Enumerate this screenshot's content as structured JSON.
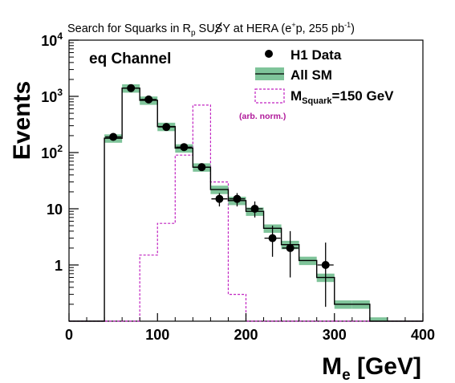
{
  "chart_data": {
    "type": "histogram",
    "title": "Search for Squarks in R̸p SUSY at HERA (e⁺p, 255 pb⁻¹)",
    "title_parts": {
      "prefix": "Search for Squarks in ",
      "rp_letter": "R",
      "rp_sub": "p",
      "middle": " SUSY at HERA (e",
      "sup_plus": "+",
      "mid2": "p, 255 pb",
      "sup_inv": "-1",
      "suffix": ")"
    },
    "channel_label": "eq Channel",
    "xlabel": "M",
    "xlabel_sub": "e",
    "xlabel_suffix": " [GeV]",
    "ylabel": "Events",
    "xlim": [
      0,
      400
    ],
    "ylim": [
      0.1,
      10000
    ],
    "y_scale": "log",
    "x_ticks": [
      0,
      100,
      200,
      300,
      400
    ],
    "y_ticks": [
      {
        "value": 1,
        "label": "1"
      },
      {
        "value": 10,
        "label": "10"
      },
      {
        "value": 100,
        "label_base": "10",
        "label_exp": "2"
      },
      {
        "value": 1000,
        "label_base": "10",
        "label_exp": "3"
      },
      {
        "value": 10000,
        "label_base": "10",
        "label_exp": "4"
      }
    ],
    "legend": {
      "position": "top-right",
      "entries": [
        {
          "label": "H1 Data",
          "style": "marker"
        },
        {
          "label": "All SM",
          "style": "band-line"
        },
        {
          "label_main": "M",
          "label_sub": "Squark",
          "label_rest": "=150 GeV",
          "style": "dashed"
        }
      ],
      "note": "(arb. norm.)"
    },
    "bin_edges": [
      0,
      20,
      40,
      60,
      80,
      100,
      120,
      140,
      160,
      180,
      200,
      220,
      240,
      260,
      280,
      300,
      320,
      340,
      360,
      380,
      400
    ],
    "series": [
      {
        "name": "All SM",
        "style": "step-band",
        "values": [
          0,
          0,
          180,
          1400,
          850,
          290,
          120,
          55,
          22,
          14,
          9,
          4.5,
          2.3,
          1.2,
          0.6,
          0.2,
          0.2,
          0.1,
          0,
          0
        ],
        "band_rel": 0.17
      },
      {
        "name": "M_Squark=150 GeV",
        "style": "dashed-step",
        "values": [
          0,
          0,
          0,
          0,
          1.5,
          5.5,
          90,
          700,
          30,
          0.3,
          0,
          0,
          0,
          0,
          0,
          0,
          0,
          0,
          0,
          0
        ]
      },
      {
        "name": "H1 Data",
        "style": "points",
        "points": [
          {
            "x": 50,
            "y": 190,
            "lo": 176,
            "hi": 204
          },
          {
            "x": 70,
            "y": 1400,
            "lo": 1363,
            "hi": 1437
          },
          {
            "x": 90,
            "y": 880,
            "lo": 850,
            "hi": 910
          },
          {
            "x": 110,
            "y": 285,
            "lo": 268,
            "hi": 302
          },
          {
            "x": 130,
            "y": 125,
            "lo": 114,
            "hi": 136
          },
          {
            "x": 150,
            "y": 55,
            "lo": 48,
            "hi": 62
          },
          {
            "x": 170,
            "y": 15,
            "lo": 11,
            "hi": 19
          },
          {
            "x": 190,
            "y": 15,
            "lo": 11,
            "hi": 19
          },
          {
            "x": 210,
            "y": 10,
            "lo": 7,
            "hi": 13.5
          },
          {
            "x": 230,
            "y": 3,
            "lo": 1.4,
            "hi": 5
          },
          {
            "x": 250,
            "y": 2,
            "lo": 0.6,
            "hi": 4
          },
          {
            "x": 290,
            "y": 1,
            "lo": 0.18,
            "hi": 2.5
          }
        ]
      }
    ],
    "colors": {
      "sm_line": "#000000",
      "sm_band": "#7fc49a",
      "signal": "#c020c0",
      "note": "#b0199a"
    }
  }
}
